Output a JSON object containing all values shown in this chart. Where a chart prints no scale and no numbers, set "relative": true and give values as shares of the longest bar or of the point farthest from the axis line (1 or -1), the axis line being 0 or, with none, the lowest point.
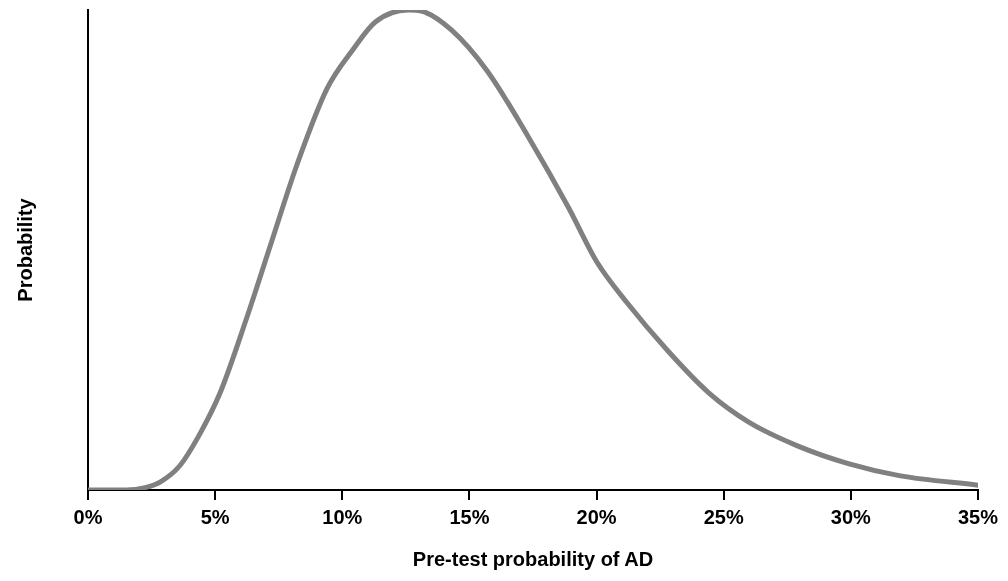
{
  "chart_data": {
    "type": "line",
    "relative": true,
    "xlabel": "Pre-test probability of AD",
    "ylabel": "Probability",
    "x": [
      0,
      1.5,
      2.25,
      2.85,
      3.6,
      4.4,
      5.2,
      6.2,
      7.2,
      8.2,
      9.4,
      10.4,
      11.3,
      12.6,
      13.1,
      14.3,
      15.7,
      17.3,
      18.9,
      20.0,
      21.2,
      22.8,
      24.4,
      26.0,
      27.9,
      29.9,
      31.9,
      35
    ],
    "series": [
      {
        "color": "#808080",
        "values": [
          0,
          0,
          0.005,
          0.017,
          0.05,
          0.117,
          0.203,
          0.352,
          0.514,
          0.675,
          0.836,
          0.916,
          0.975,
          1,
          0.998,
          0.958,
          0.873,
          0.737,
          0.588,
          0.476,
          0.39,
          0.29,
          0.203,
          0.141,
          0.092,
          0.055,
          0.03,
          0.01
        ]
      }
    ],
    "xlim": [
      0,
      35
    ],
    "xticks": [
      {
        "value": 0,
        "label": "0%"
      },
      {
        "value": 5,
        "label": "5%"
      },
      {
        "value": 10,
        "label": "10%"
      },
      {
        "value": 15,
        "label": "15%"
      },
      {
        "value": 20,
        "label": "20%"
      },
      {
        "value": 25,
        "label": "25%"
      },
      {
        "value": 30,
        "label": "30%"
      },
      {
        "value": 35,
        "label": "35%"
      }
    ],
    "grid": false,
    "legend": false,
    "marker": "none",
    "line_style": "solid"
  }
}
